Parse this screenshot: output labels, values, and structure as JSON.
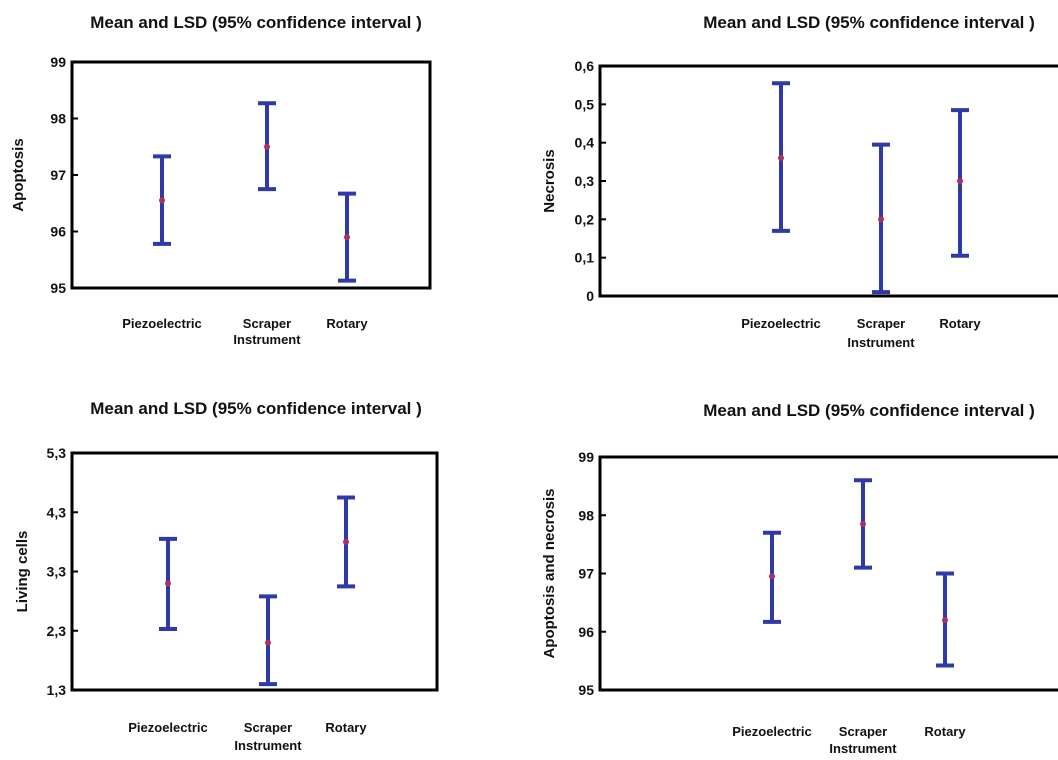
{
  "chart_data": [
    {
      "type": "errorbar",
      "title": "Mean and LSD (95% confidence interval )",
      "xlabel": "Instrument",
      "ylabel": "Apoptosis",
      "categories": [
        "Piezoelectric",
        "Scraper",
        "Rotary"
      ],
      "mean": [
        96.55,
        97.5,
        95.9
      ],
      "lower": [
        95.78,
        96.75,
        95.13
      ],
      "upper": [
        97.33,
        98.27,
        96.67
      ],
      "ylim": [
        95,
        99
      ],
      "yticks": [
        "95",
        "96",
        "97",
        "98",
        "99"
      ],
      "ytick_values": [
        95,
        96,
        97,
        98,
        99
      ]
    },
    {
      "type": "errorbar",
      "title": "Mean and LSD (95% confidence interval )",
      "xlabel": "Instrument",
      "ylabel": "Necrosis",
      "categories": [
        "Piezoelectric",
        "Scraper",
        "Rotary"
      ],
      "mean": [
        0.36,
        0.2,
        0.3
      ],
      "lower": [
        0.17,
        0.01,
        0.105
      ],
      "upper": [
        0.555,
        0.395,
        0.485
      ],
      "ylim": [
        0,
        0.6
      ],
      "yticks": [
        "0",
        "0,1",
        "0,2",
        "0,3",
        "0,4",
        "0,5",
        "0,6"
      ],
      "ytick_values": [
        0,
        0.1,
        0.2,
        0.3,
        0.4,
        0.5,
        0.6
      ]
    },
    {
      "type": "errorbar",
      "title": "Mean and LSD (95% confidence interval )",
      "xlabel": "Instrument",
      "ylabel": "Living cells",
      "categories": [
        "Piezoelectric",
        "Scraper",
        "Rotary"
      ],
      "mean": [
        3.1,
        2.1,
        3.8
      ],
      "lower": [
        2.33,
        1.4,
        3.05
      ],
      "upper": [
        3.85,
        2.88,
        4.55
      ],
      "ylim": [
        1.3,
        5.3
      ],
      "yticks": [
        "1,3",
        "2,3",
        "3,3",
        "4,3",
        "5,3"
      ],
      "ytick_values": [
        1.3,
        2.3,
        3.3,
        4.3,
        5.3
      ]
    },
    {
      "type": "errorbar",
      "title": "Mean and LSD (95% confidence interval )",
      "xlabel": "Instrument",
      "ylabel": "Apoptosis and necrosis",
      "categories": [
        "Piezoelectric",
        "Scraper",
        "Rotary"
      ],
      "mean": [
        96.95,
        97.85,
        96.2
      ],
      "lower": [
        96.17,
        97.1,
        95.42
      ],
      "upper": [
        97.7,
        98.6,
        97.0
      ],
      "ylim": [
        95,
        99
      ],
      "yticks": [
        "95",
        "96",
        "97",
        "98",
        "99"
      ],
      "ytick_values": [
        95,
        96,
        97,
        98,
        99
      ]
    }
  ]
}
